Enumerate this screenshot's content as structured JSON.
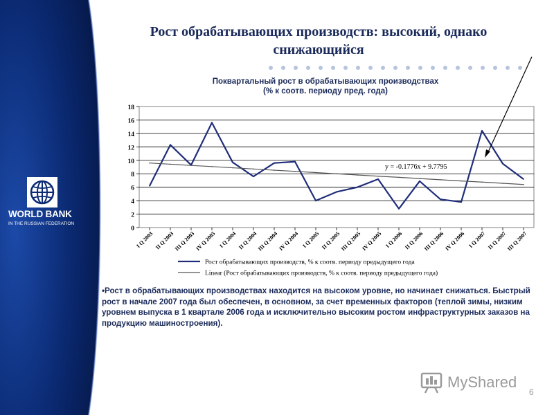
{
  "slide": {
    "title": "Рост обрабатывающих производств: высокий, однако снижающийся",
    "chart_title_line1": "Поквартальный рост в обрабатывающих производствах",
    "chart_title_line2": "(% к соотв. периоду пред. года)",
    "trendline_equation": "y = -0.1776x + 9.7795",
    "body_text": "•Рост в обрабатывающих производствах находится на высоком уровне, но начинает снижаться. Быстрый рост в начале 2007 года был обеспечен, в основном, за счет временных факторов (теплой зимы, низким уровнем выпуска в 1 квартале 2006 года и исключительно высоким ростом инфраструктурных заказов на продукцию машиностроения).",
    "page_number": "6"
  },
  "logo": {
    "name": "WORLD BANK",
    "subtitle": "IN THE RUSSIAN FEDERATION",
    "icon": "globe-icon"
  },
  "watermark": {
    "text": "MyShared",
    "icon": "presentation-board-icon"
  },
  "colors": {
    "sidebar_blue": "#0b2a73",
    "title_text": "#1a2a5a",
    "series_line": "#1f2d7a",
    "trend_line": "#555555"
  },
  "chart_data": {
    "type": "line",
    "categories": [
      "I Q 2003",
      "II Q 2003",
      "III Q 2003",
      "IV Q 2003",
      "I Q 2004",
      "II Q 2004",
      "III Q 2004",
      "IV Q 2004",
      "I Q 2005",
      "II Q 2005",
      "III Q 2005",
      "IV Q 2005",
      "I Q 2006",
      "II Q 2006",
      "III Q 2006",
      "IV Q 2006",
      "I Q 2007",
      "II Q 2007",
      "III Q 2007"
    ],
    "series": [
      {
        "name": "Рост обрабатывающих производств, % к соотв. периоду предыдущего года",
        "values": [
          6.2,
          12.3,
          9.3,
          15.6,
          9.7,
          7.6,
          9.6,
          9.8,
          4.0,
          5.3,
          6.0,
          7.2,
          2.8,
          6.9,
          4.2,
          3.8,
          14.4,
          9.5,
          7.2
        ]
      },
      {
        "name": "Linear (Рост обрабатывающих производств, % к соотв. периоду предыдущего года)",
        "values": [
          9.6,
          9.42,
          9.24,
          9.07,
          8.89,
          8.71,
          8.53,
          8.36,
          8.18,
          8.0,
          7.82,
          7.64,
          7.47,
          7.29,
          7.11,
          6.93,
          6.76,
          6.58,
          6.4
        ]
      }
    ],
    "y_ticks": [
      "0",
      "2",
      "4",
      "6",
      "8",
      "10",
      "12",
      "14",
      "16",
      "18"
    ],
    "ylim": [
      0,
      18
    ],
    "grid": true,
    "legend_position": "bottom"
  }
}
